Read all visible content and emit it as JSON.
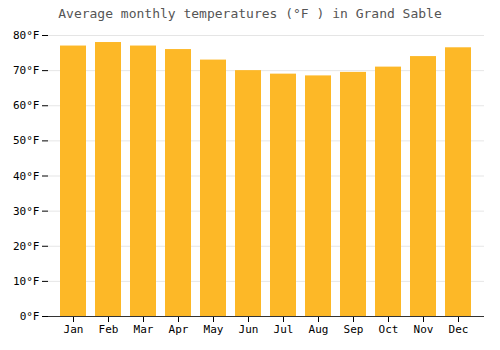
{
  "chart_data": {
    "type": "bar",
    "title": "Average monthly temperatures (°F ) in Grand Sable",
    "categories": [
      "Jan",
      "Feb",
      "Mar",
      "Apr",
      "May",
      "Jun",
      "Jul",
      "Aug",
      "Sep",
      "Oct",
      "Nov",
      "Dec"
    ],
    "values": [
      77,
      78,
      77,
      76,
      73,
      70,
      69,
      68.5,
      69.5,
      71,
      74,
      76.5
    ],
    "color": "#FDB827",
    "ylim": [
      0,
      80
    ],
    "yticks": [
      {
        "value": 0,
        "label": "0°F"
      },
      {
        "value": 10,
        "label": "10°F"
      },
      {
        "value": 20,
        "label": "20°F"
      },
      {
        "value": 30,
        "label": "30°F"
      },
      {
        "value": 40,
        "label": "40°F"
      },
      {
        "value": 50,
        "label": "50°F"
      },
      {
        "value": 60,
        "label": "60°F"
      },
      {
        "value": 70,
        "label": "70°F"
      },
      {
        "value": 80,
        "label": "80°F"
      }
    ],
    "grid": true
  }
}
